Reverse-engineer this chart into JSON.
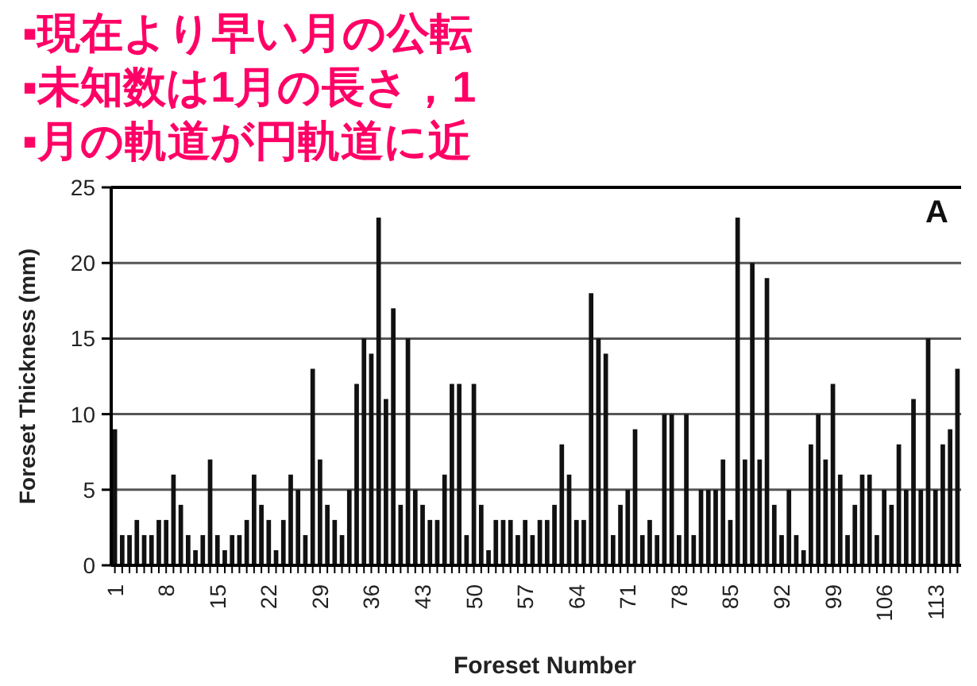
{
  "chart_data": {
    "type": "bar",
    "xlabel": "Foreset Number",
    "ylabel": "Foreset Thickness (mm)",
    "categories": [
      "1",
      null,
      null,
      null,
      null,
      null,
      null,
      "8",
      null,
      null,
      null,
      null,
      null,
      null,
      "15",
      null,
      null,
      null,
      null,
      null,
      null,
      "22",
      null,
      null,
      null,
      null,
      null,
      null,
      "29",
      null,
      null,
      null,
      null,
      null,
      null,
      "36",
      null,
      null,
      null,
      null,
      null,
      null,
      "43",
      null,
      null,
      null,
      null,
      null,
      null,
      "50",
      null,
      null,
      null,
      null,
      null,
      null,
      "57",
      null,
      null,
      null,
      null,
      null,
      null,
      "64",
      null,
      null,
      null,
      null,
      null,
      null,
      "71",
      null,
      null,
      null,
      null,
      null,
      null,
      "78",
      null,
      null,
      null,
      null,
      null,
      null,
      "85",
      null,
      null,
      null,
      null,
      null,
      null,
      "92",
      null,
      null,
      null,
      null,
      null,
      null,
      "99",
      null,
      null,
      null,
      null,
      null,
      null,
      "106",
      null,
      null,
      null,
      null,
      null,
      null,
      "113",
      null,
      null,
      null
    ],
    "values": [
      9,
      2,
      2,
      3,
      2,
      2,
      3,
      3,
      6,
      4,
      2,
      1,
      2,
      7,
      2,
      1,
      2,
      2,
      3,
      6,
      4,
      3,
      1,
      3,
      6,
      5,
      2,
      13,
      7,
      4,
      3,
      2,
      5,
      12,
      15,
      14,
      23,
      11,
      17,
      4,
      15,
      5,
      4,
      3,
      3,
      6,
      12,
      12,
      2,
      12,
      4,
      1,
      3,
      3,
      3,
      2,
      3,
      2,
      3,
      3,
      4,
      8,
      6,
      3,
      3,
      18,
      15,
      14,
      2,
      4,
      5,
      9,
      2,
      3,
      2,
      10,
      10,
      2,
      10,
      2,
      5,
      5,
      5,
      7,
      3,
      23,
      7,
      20,
      7,
      19,
      4,
      2,
      5,
      2,
      1,
      8,
      10,
      7,
      12,
      6,
      2,
      4,
      6,
      6,
      2,
      5,
      4,
      8,
      5,
      11,
      5,
      15,
      5,
      8,
      9,
      13
    ],
    "color": "#111111",
    "ylim": [
      0,
      25
    ],
    "yticks": [
      0,
      5,
      10,
      15,
      20,
      25
    ],
    "grid": "y",
    "annotations": [
      "A",
      "▪現在より早い月の公転",
      "▪未知数は1月の長さ，1",
      "▪月の軌道が円軌道に近"
    ]
  }
}
